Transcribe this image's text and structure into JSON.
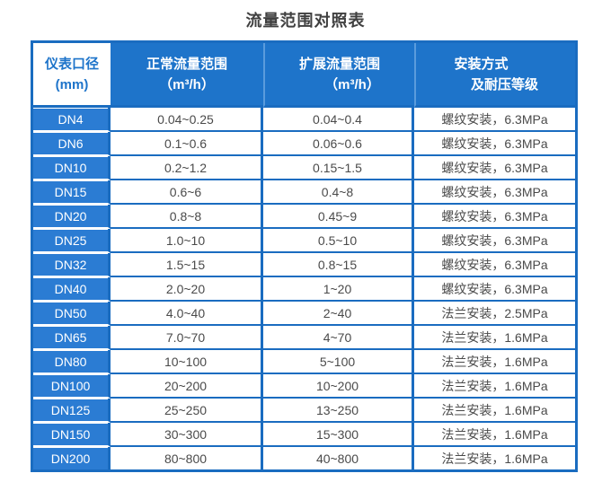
{
  "page": {
    "title": "流量范围对照表"
  },
  "colors": {
    "border_blue": "#1a6cc0",
    "header_blue": "#1e74ca",
    "first_column_blue": "#2b7cd3",
    "header_separator_blue": "#5a9bdc",
    "data_text": "#4a4a4a",
    "title_text": "#404040",
    "cell_background": "#ffffff"
  },
  "table": {
    "headers": [
      {
        "line1": "仪表口径",
        "line2": "(mm)"
      },
      {
        "line1": "正常流量范围",
        "line2": "（m³/h）"
      },
      {
        "line1": "扩展流量范围",
        "line2": "（m³/h）"
      },
      {
        "line1": "安装方式",
        "line2": "及耐压等级"
      }
    ],
    "rows": [
      [
        "DN4",
        "0.04~0.25",
        "0.04~0.4",
        "螺纹安装，6.3MPa"
      ],
      [
        "DN6",
        "0.1~0.6",
        "0.06~0.6",
        "螺纹安装，6.3MPa"
      ],
      [
        "DN10",
        "0.2~1.2",
        "0.15~1.5",
        "螺纹安装，6.3MPa"
      ],
      [
        "DN15",
        "0.6~6",
        "0.4~8",
        "螺纹安装，6.3MPa"
      ],
      [
        "DN20",
        "0.8~8",
        "0.45~9",
        "螺纹安装，6.3MPa"
      ],
      [
        "DN25",
        "1.0~10",
        "0.5~10",
        "螺纹安装，6.3MPa"
      ],
      [
        "DN32",
        "1.5~15",
        "0.8~15",
        "螺纹安装，6.3MPa"
      ],
      [
        "DN40",
        "2.0~20",
        "1~20",
        "螺纹安装，6.3MPa"
      ],
      [
        "DN50",
        "4.0~40",
        "2~40",
        "法兰安装，2.5MPa"
      ],
      [
        "DN65",
        "7.0~70",
        "4~70",
        "法兰安装，1.6MPa"
      ],
      [
        "DN80",
        "10~100",
        "5~100",
        "法兰安装，1.6MPa"
      ],
      [
        "DN100",
        "20~200",
        "10~200",
        "法兰安装，1.6MPa"
      ],
      [
        "DN125",
        "25~250",
        "13~250",
        "法兰安装，1.6MPa"
      ],
      [
        "DN150",
        "30~300",
        "15~300",
        "法兰安装，1.6MPa"
      ],
      [
        "DN200",
        "80~800",
        "40~800",
        "法兰安装，1.6MPa"
      ]
    ]
  }
}
